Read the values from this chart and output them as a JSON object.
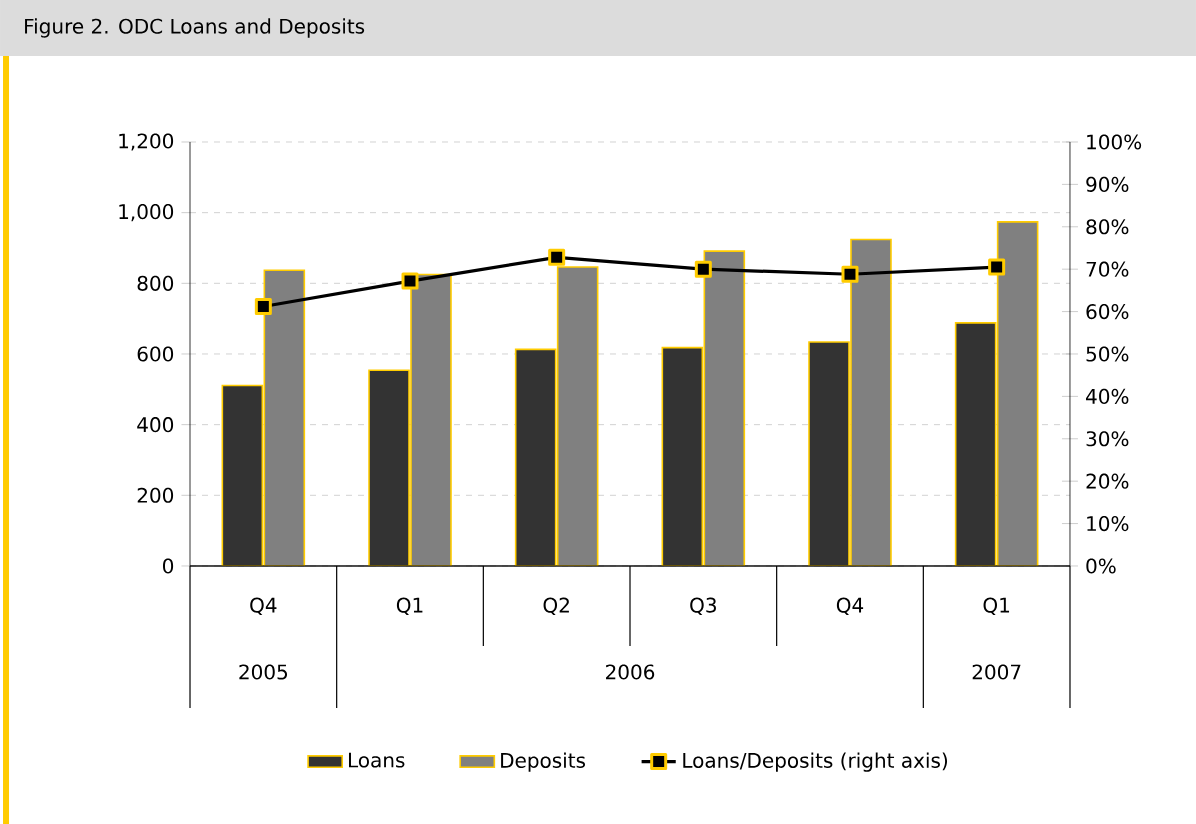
{
  "chart_data": {
    "type": "bar",
    "title": "Figure 2. ODC Loans and Deposits",
    "categories": [
      "Q4",
      "Q1",
      "Q2",
      "Q3",
      "Q4",
      "Q1"
    ],
    "annotations": [
      "2005",
      "2006",
      "2007"
    ],
    "series": [
      {
        "name": "Loans",
        "color": "#333333",
        "values": [
          511,
          554,
          613,
          618,
          634,
          688
        ]
      },
      {
        "name": "Deposits",
        "color": "#808080",
        "values": [
          837,
          825,
          846,
          891,
          924,
          974
        ]
      },
      {
        "name": "Loans/Deposits (right axis)",
        "type": "line",
        "axis": "y2",
        "color": "#000000",
        "marker": "square",
        "line_style": "solid",
        "values": [
          61.2,
          67.2,
          72.8,
          70.0,
          68.8,
          70.5
        ]
      }
    ],
    "ylim": [
      0,
      1200
    ],
    "yticks": [
      0,
      200,
      400,
      600,
      800,
      {
        "value": 1000,
        "label": "1,000"
      },
      {
        "value": 1200,
        "label": "1,200"
      }
    ],
    "y2lim": [
      0,
      100
    ],
    "y2ticks": [
      {
        "value": 0,
        "label": "0%"
      },
      {
        "value": 10,
        "label": "10%"
      },
      {
        "value": 20,
        "label": "20%"
      },
      {
        "value": 30,
        "label": "30%"
      },
      {
        "value": 40,
        "label": "40%"
      },
      {
        "value": 50,
        "label": "50%"
      },
      {
        "value": 60,
        "label": "60%"
      },
      {
        "value": 70,
        "label": "70%"
      },
      {
        "value": 80,
        "label": "80%"
      },
      {
        "value": 90,
        "label": "90%"
      },
      {
        "value": 100,
        "label": "100%"
      }
    ],
    "grid": "y",
    "legend": "bottom"
  }
}
